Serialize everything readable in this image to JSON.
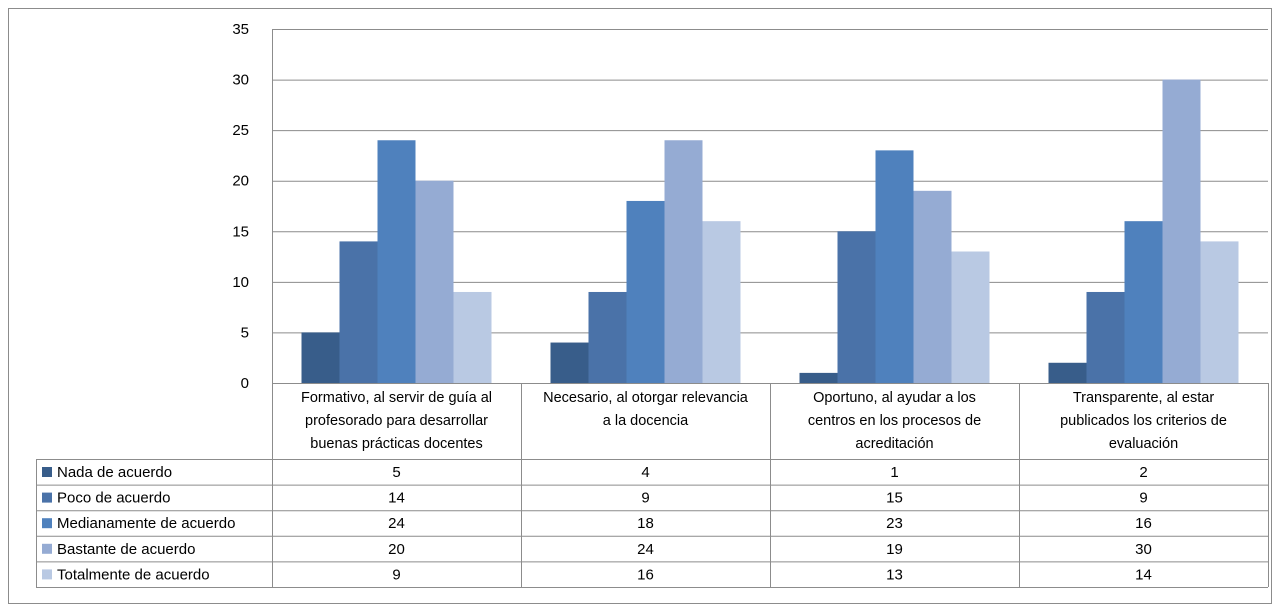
{
  "chart_data": {
    "type": "bar",
    "title": "",
    "xlabel": "",
    "ylabel": "",
    "ylim": [
      0,
      35
    ],
    "yticks": [
      0,
      5,
      10,
      15,
      20,
      25,
      30,
      35
    ],
    "grid": true,
    "legend": "data-table",
    "categories": [
      "Formativo, al servir de guía al profesorado para desarrollar buenas prácticas docentes",
      "Necesario, al otorgar relevancia a la docencia",
      "Oportuno, al ayudar a los centros en los procesos de acreditación",
      "Transparente, al estar publicados los criterios de evaluación"
    ],
    "category_lines": [
      [
        "Formativo, al servir de guía al",
        "profesorado para desarrollar",
        "buenas prácticas docentes"
      ],
      [
        "Necesario, al otorgar relevancia",
        "a la docencia"
      ],
      [
        "Oportuno, al ayudar a los",
        "centros en los procesos de",
        "acreditación"
      ],
      [
        "Transparente, al estar",
        "publicados los criterios de",
        "evaluación"
      ]
    ],
    "series": [
      {
        "name": "Nada de acuerdo",
        "color": "#385d8a",
        "values": [
          5,
          4,
          1,
          2
        ]
      },
      {
        "name": "Poco de acuerdo",
        "color": "#4a72a8",
        "values": [
          14,
          9,
          15,
          9
        ]
      },
      {
        "name": "Medianamente de acuerdo",
        "color": "#4f81bd",
        "values": [
          24,
          18,
          23,
          16
        ]
      },
      {
        "name": "Bastante de acuerdo",
        "color": "#95abd3",
        "values": [
          20,
          24,
          19,
          30
        ]
      },
      {
        "name": "Totalmente de acuerdo",
        "color": "#b9c9e3",
        "values": [
          9,
          16,
          13,
          14
        ]
      }
    ]
  }
}
